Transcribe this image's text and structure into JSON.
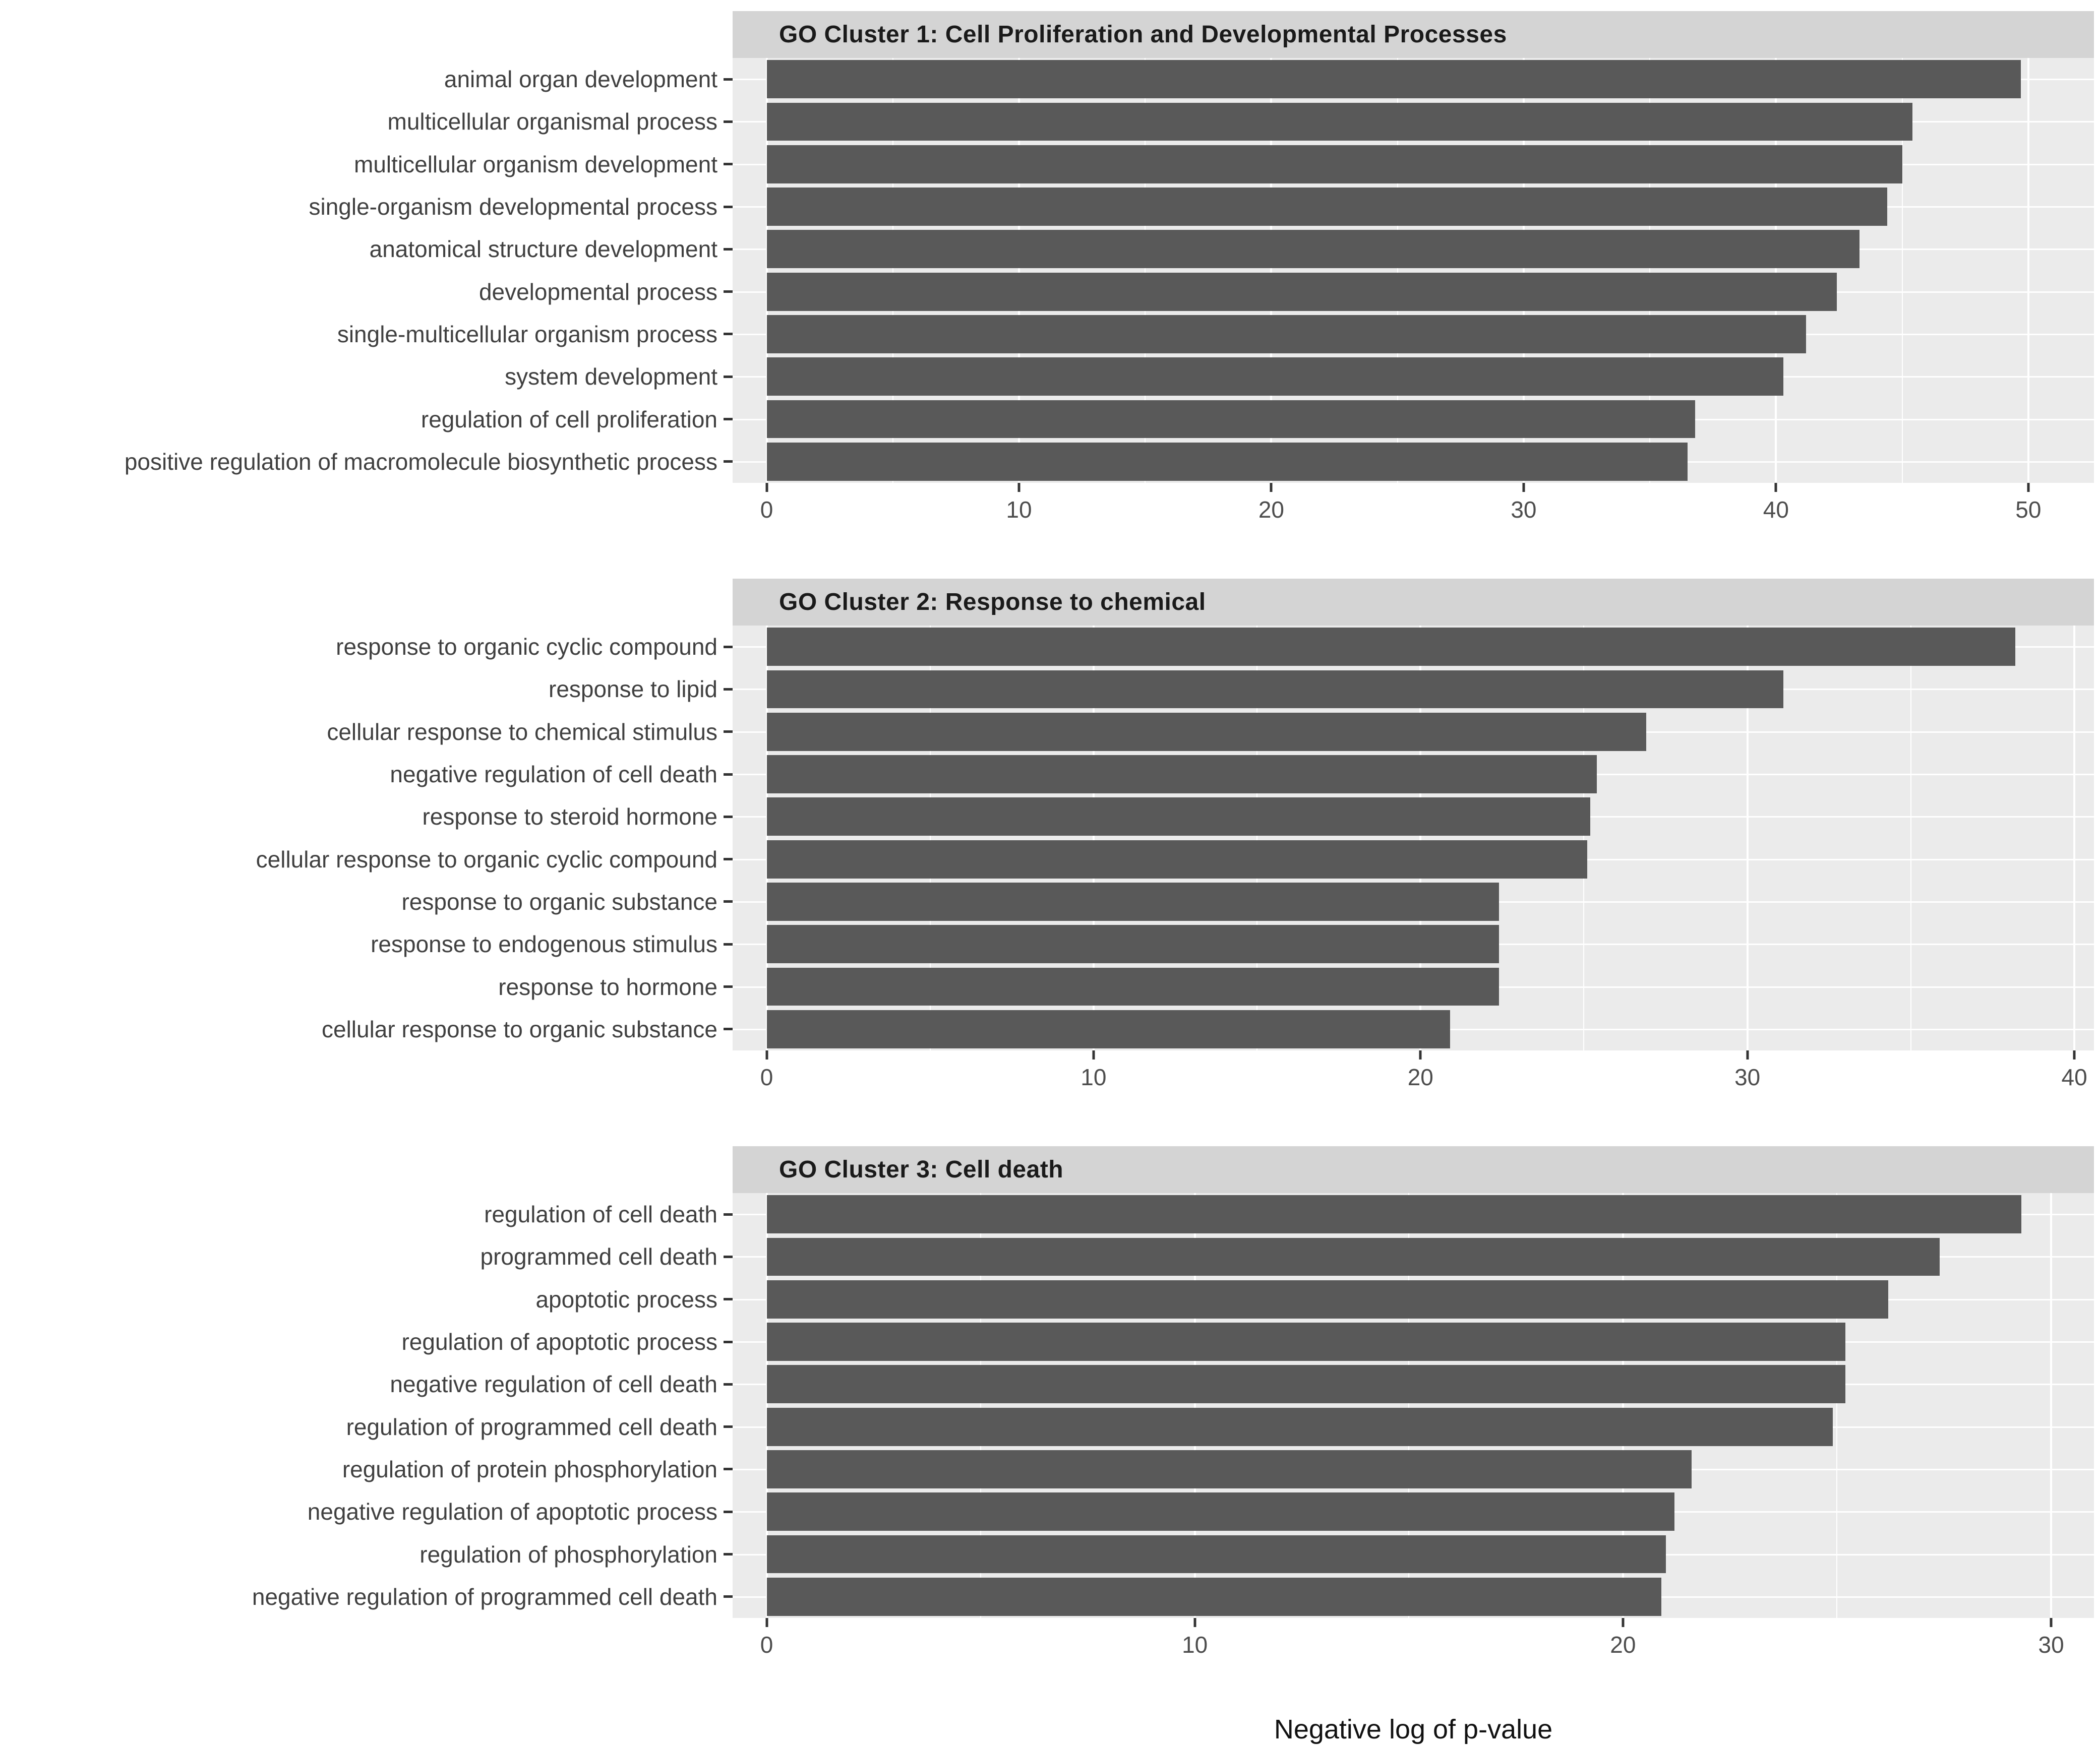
{
  "figure": {
    "caption": "Negative log of p-value",
    "colors": {
      "bar": "#595959",
      "panel_bg": "#ebebeb",
      "strip_bg": "#d4d4d4",
      "grid": "#ffffff",
      "tick": "#333333",
      "label_text": "#404040",
      "tick_text": "#4d4d4d",
      "title_text": "#1a1a1a",
      "caption_text": "#111111",
      "page_bg": "#ffffff"
    }
  },
  "chart_data": [
    {
      "type": "bar",
      "orientation": "horizontal",
      "title": "GO Cluster 1: Cell Proliferation and Developmental Processes",
      "categories": [
        "animal organ development",
        "multicellular organismal process",
        "multicellular organism development",
        "single-organism developmental process",
        "anatomical structure development",
        "developmental process",
        "single-multicellular organism process",
        "system development",
        "regulation of cell proliferation",
        "positive regulation of macromolecule biosynthetic process"
      ],
      "values": [
        49.7,
        45.4,
        45.0,
        44.4,
        43.3,
        42.4,
        41.2,
        40.3,
        36.8,
        36.5
      ],
      "xticks": [
        0,
        10,
        20,
        30,
        40,
        50
      ],
      "xlim": [
        0,
        52.6
      ],
      "xlabel": "Negative log of p-value",
      "grid": "on",
      "legend": "none"
    },
    {
      "type": "bar",
      "orientation": "horizontal",
      "title": "GO Cluster 2: Response to chemical",
      "categories": [
        "response to organic cyclic compound",
        "response to lipid",
        "cellular response to chemical stimulus",
        "negative regulation of cell death",
        "response to steroid hormone",
        "cellular response to organic cyclic compound",
        "response to organic substance",
        "response to endogenous stimulus",
        "response to hormone",
        "cellular response to organic substance"
      ],
      "values": [
        38.2,
        31.1,
        26.9,
        25.4,
        25.2,
        25.1,
        22.4,
        22.4,
        22.4,
        20.9
      ],
      "xticks": [
        0,
        10,
        20,
        30,
        40
      ],
      "xlim": [
        0,
        40.6
      ],
      "xlabel": "Negative log of p-value",
      "grid": "on",
      "legend": "none"
    },
    {
      "type": "bar",
      "orientation": "horizontal",
      "title": "GO Cluster 3: Cell death",
      "categories": [
        "regulation of cell death",
        "programmed cell death",
        "apoptotic process",
        "regulation of apoptotic process",
        "negative regulation of cell death",
        "regulation of programmed cell death",
        "regulation of protein phosphorylation",
        "negative regulation of apoptotic process",
        "regulation of phosphorylation",
        "negative regulation of programmed cell death"
      ],
      "values": [
        29.3,
        27.4,
        26.2,
        25.2,
        25.2,
        24.9,
        21.6,
        21.2,
        21.0,
        20.9
      ],
      "xticks": [
        0,
        10,
        20,
        30
      ],
      "xlim": [
        0,
        31.0
      ],
      "xlabel": "Negative log of p-value",
      "grid": "on",
      "legend": "none"
    }
  ]
}
